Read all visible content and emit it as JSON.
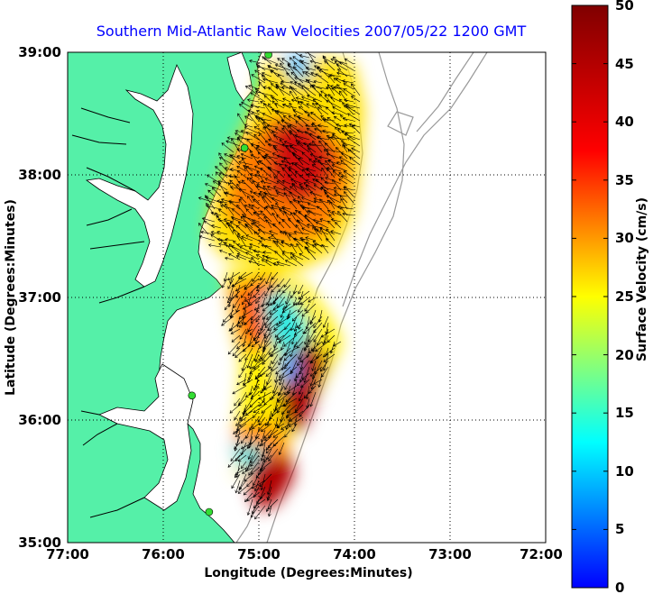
{
  "title": "Southern Mid-Atlantic Raw Velocities 2007/05/22 1200 GMT",
  "x_axis": {
    "label": "Longitude (Degrees:Minutes)",
    "ticks": [
      "77:00",
      "76:00",
      "75:00",
      "74:00",
      "73:00",
      "72:00"
    ]
  },
  "y_axis": {
    "label": "Latitude (Degrees:Minutes)",
    "ticks": [
      "39:00",
      "38:00",
      "37:00",
      "36:00",
      "35:00"
    ]
  },
  "colorbar": {
    "label": "Surface Velocity (cm/s)",
    "ticks": [
      "50",
      "45",
      "40",
      "35",
      "30",
      "25",
      "20",
      "15",
      "10",
      "5",
      "0"
    ],
    "range": [
      0,
      50
    ],
    "colormap": "jet"
  },
  "grid": "dotted",
  "colors": {
    "land": "#55f0a8",
    "coast": "#000000",
    "bathymetry": "#999999",
    "station": "#33dd33",
    "title": "#0000ff"
  },
  "stations": [
    {
      "lon": -74.9,
      "lat": 38.98
    },
    {
      "lon": -75.15,
      "lat": 38.22
    },
    {
      "lon": -75.7,
      "lat": 36.2
    },
    {
      "lon": -75.52,
      "lat": 35.25
    }
  ]
}
